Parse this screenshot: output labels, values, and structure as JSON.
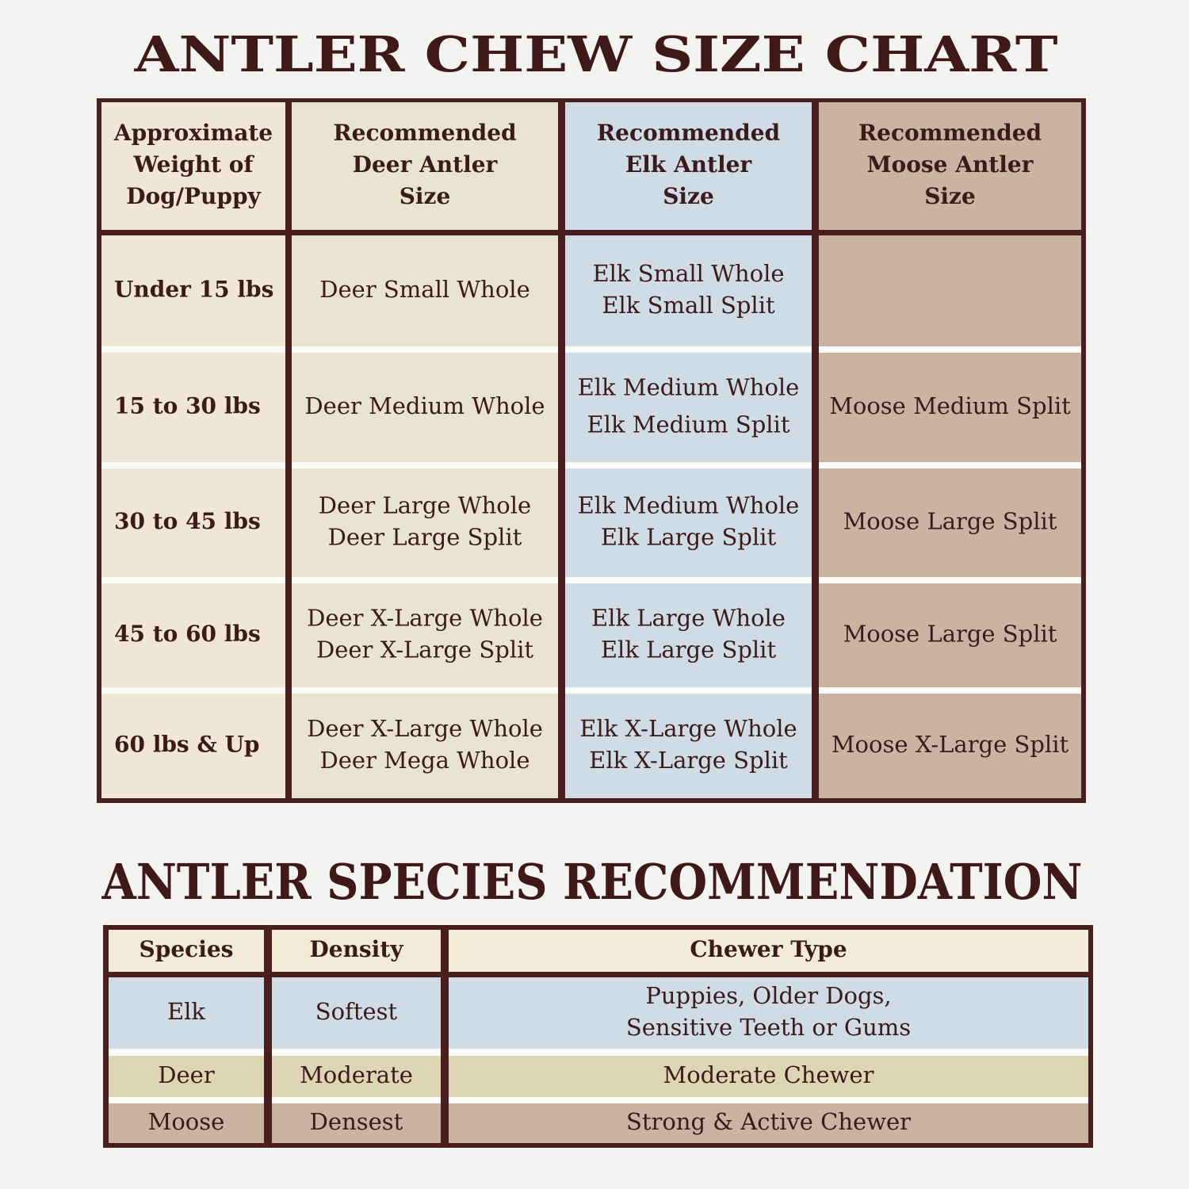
{
  "size_chart": {
    "title": "ANTLER CHEW SIZE CHART",
    "header": [
      [
        "Approximate",
        "Weight of",
        "Dog/Puppy"
      ],
      [
        "Recommended",
        "Deer Antler",
        "Size"
      ],
      [
        "Recommended",
        "Elk Antler",
        "Size"
      ],
      [
        "Recommended",
        "Moose Antler",
        "Size"
      ]
    ],
    "rows": [
      [
        [
          "Under 15 lbs"
        ],
        [
          "Deer Small Whole"
        ],
        [
          "Elk Small Whole",
          "Elk Small Split"
        ],
        []
      ],
      [
        [
          "15 to 30 lbs"
        ],
        [
          "Deer Medium Whole"
        ],
        [
          "Elk Medium Whole",
          "Elk Medium Split"
        ],
        [
          "Moose Medium Split"
        ]
      ],
      [
        [
          "30 to 45 lbs"
        ],
        [
          "Deer Large Whole",
          "Deer Large Split"
        ],
        [
          "Elk Medium Whole",
          "Elk Large Split"
        ],
        [
          "Moose Large Split"
        ]
      ],
      [
        [
          "45 to 60 lbs"
        ],
        [
          "Deer X-Large Whole",
          "Deer X-Large Split"
        ],
        [
          "Elk Large Whole",
          "Elk Large Split"
        ],
        [
          "Moose Large Split"
        ]
      ],
      [
        [
          "60 lbs & Up"
        ],
        [
          "Deer X-Large Whole",
          "Deer Mega Whole"
        ],
        [
          "Elk X-Large Whole",
          "Elk X-Large Split"
        ],
        [
          "Moose X-Large Split"
        ]
      ]
    ]
  },
  "species_chart": {
    "title": "ANTLER SPECIES RECOMMENDATION",
    "header": [
      [
        "Species"
      ],
      [
        "Density"
      ],
      [
        "Chewer Type"
      ]
    ],
    "rows": [
      [
        [
          "Elk"
        ],
        [
          "Softest"
        ],
        [
          "Puppies, Older Dogs,",
          "Sensitive Teeth or Gums"
        ]
      ],
      [
        [
          "Deer"
        ],
        [
          "Moderate"
        ],
        [
          "Moderate Chewer"
        ]
      ],
      [
        [
          "Moose"
        ],
        [
          "Densest"
        ],
        [
          "Strong & Active Chewer"
        ]
      ]
    ]
  }
}
